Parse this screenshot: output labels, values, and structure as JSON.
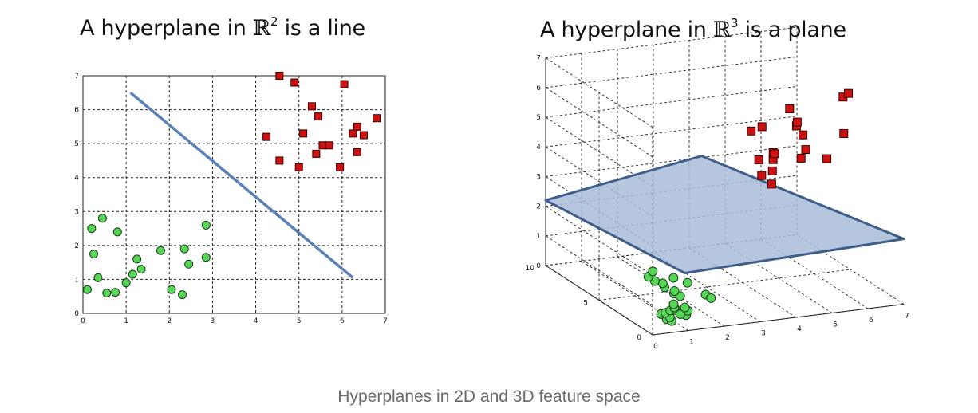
{
  "caption": "Hyperplanes in 2D and 3D feature space",
  "colors": {
    "green_point": "#55d655",
    "red_point": "#cc1111",
    "hyperplane_line": "#5b82b5",
    "plane_fill": "#a9bcd8",
    "plane_edge": "#3f5f8a"
  },
  "chart_data": [
    {
      "type": "scatter",
      "title": {
        "prefix": "A hyperplane in ",
        "space": "ℝ",
        "power": "2",
        "suffix": " is a line"
      },
      "xlim": [
        0,
        7
      ],
      "ylim": [
        0,
        7
      ],
      "xticks": [
        "0",
        "1",
        "2",
        "3",
        "4",
        "5",
        "6",
        "7"
      ],
      "yticks": [
        "0",
        "1",
        "2",
        "3",
        "4",
        "5",
        "6",
        "7"
      ],
      "grid": true,
      "hyperplane": {
        "x": [
          1.1,
          6.25
        ],
        "y": [
          6.5,
          1.05
        ]
      },
      "series": [
        {
          "marker": "circle",
          "color": "#55d655",
          "points": [
            [
              0.1,
              0.7
            ],
            [
              0.2,
              2.5
            ],
            [
              0.25,
              1.75
            ],
            [
              0.35,
              1.05
            ],
            [
              0.45,
              2.8
            ],
            [
              0.55,
              0.6
            ],
            [
              0.75,
              0.62
            ],
            [
              0.8,
              2.4
            ],
            [
              1.0,
              0.9
            ],
            [
              1.15,
              1.15
            ],
            [
              1.25,
              1.6
            ],
            [
              1.35,
              1.3
            ],
            [
              1.8,
              1.85
            ],
            [
              2.05,
              0.7
            ],
            [
              2.3,
              0.55
            ],
            [
              2.35,
              1.9
            ],
            [
              2.45,
              1.45
            ],
            [
              2.85,
              2.6
            ],
            [
              2.85,
              1.65
            ]
          ]
        },
        {
          "marker": "square",
          "color": "#cc1111",
          "points": [
            [
              4.55,
              7.0
            ],
            [
              4.9,
              6.8
            ],
            [
              5.0,
              4.3
            ],
            [
              4.55,
              4.5
            ],
            [
              4.25,
              5.2
            ],
            [
              5.1,
              5.3
            ],
            [
              5.3,
              6.1
            ],
            [
              5.4,
              4.7
            ],
            [
              5.45,
              5.8
            ],
            [
              5.55,
              4.95
            ],
            [
              5.7,
              4.95
            ],
            [
              5.95,
              4.3
            ],
            [
              6.05,
              6.75
            ],
            [
              6.25,
              5.3
            ],
            [
              6.35,
              5.5
            ],
            [
              6.5,
              5.25
            ],
            [
              6.35,
              4.75
            ],
            [
              6.8,
              5.75
            ]
          ]
        }
      ]
    },
    {
      "type": "scatter",
      "title": {
        "prefix": "A hyperplane in ",
        "space": "ℝ",
        "power": "3",
        "suffix": " is a plane"
      },
      "xlim": [
        0,
        7
      ],
      "ylim": [
        0,
        10
      ],
      "zlim": [
        0,
        7
      ],
      "xticks": [
        "0",
        "1",
        "2",
        "3",
        "4",
        "5",
        "6",
        "7"
      ],
      "yticks": [
        "0",
        "5",
        "10"
      ],
      "zticks": [
        "0",
        "1",
        "2",
        "3",
        "4",
        "5",
        "6",
        "7"
      ],
      "grid": true,
      "hyperplane": "plane",
      "series": [
        {
          "marker": "circle",
          "color": "#55d655",
          "points": [
            [
              0.9,
              1.7,
              0.0
            ],
            [
              0.95,
              1.4,
              0.0
            ],
            [
              1.05,
              1.9,
              0.0
            ],
            [
              0.95,
              2.4,
              0.0
            ],
            [
              1.1,
              2.5,
              0.0
            ],
            [
              1.3,
              2.7,
              0.0
            ],
            [
              1.45,
              2.6,
              0.0
            ],
            [
              1.5,
              1.9,
              0.0
            ],
            [
              1.4,
              2.1,
              0.0
            ],
            [
              1.5,
              3.0,
              0.0
            ],
            [
              1.7,
              2.4,
              0.0
            ],
            [
              1.75,
              2.85,
              0.0
            ],
            [
              1.6,
              3.4,
              0.0
            ],
            [
              2.0,
              4.7,
              0.0
            ],
            [
              2.05,
              4.3,
              0.0
            ],
            [
              2.1,
              5.0,
              0.0
            ],
            [
              2.0,
              5.6,
              0.0
            ],
            [
              2.1,
              6.1,
              0.0
            ],
            [
              2.0,
              6.5,
              0.0
            ],
            [
              2.0,
              7.1,
              0.0
            ],
            [
              2.3,
              7.7,
              0.0
            ],
            [
              2.55,
              6.6,
              0.0
            ],
            [
              2.7,
              5.8,
              0.0
            ],
            [
              2.7,
              4.1,
              0.0
            ],
            [
              2.7,
              3.6,
              0.0
            ]
          ]
        },
        {
          "marker": "square",
          "color": "#cc1111",
          "points": [
            [
              4.0,
              4.2,
              5.3
            ],
            [
              4.15,
              4.0,
              4.35
            ],
            [
              4.3,
              4.2,
              5.4
            ],
            [
              4.35,
              4.4,
              3.7
            ],
            [
              4.5,
              3.9,
              3.95
            ],
            [
              4.55,
              4.0,
              4.3
            ],
            [
              4.6,
              4.3,
              3.4
            ],
            [
              4.7,
              4.5,
              4.4
            ],
            [
              4.8,
              4.7,
              4.3
            ],
            [
              4.95,
              3.8,
              6.0
            ],
            [
              5.35,
              4.5,
              5.2
            ],
            [
              5.4,
              4.6,
              5.3
            ],
            [
              5.5,
              4.4,
              4.9
            ],
            [
              5.9,
              3.5,
              4.25
            ],
            [
              6.2,
              3.0,
              6.4
            ],
            [
              6.35,
              3.0,
              6.5
            ],
            [
              6.4,
              3.6,
              5.0
            ],
            [
              5.25,
              3.3,
              4.7
            ],
            [
              5.15,
              3.4,
              4.4
            ]
          ]
        }
      ]
    }
  ]
}
